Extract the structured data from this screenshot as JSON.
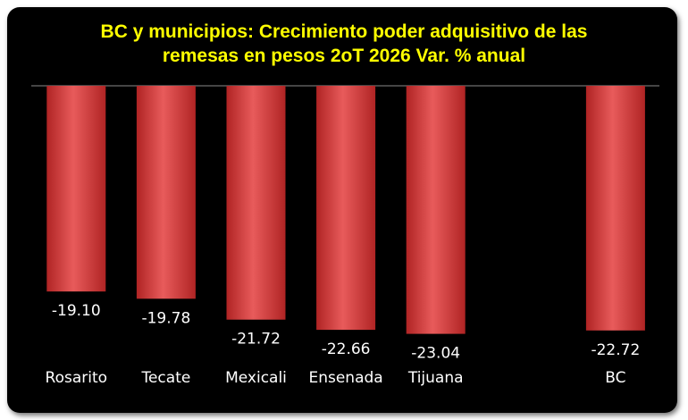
{
  "chart_data": {
    "type": "bar",
    "title_line1": "BC y municipios: Crecimiento poder adquisitivo de las",
    "title_line2": "remesas en pesos 2oT 2026 Var. % anual",
    "categories": [
      "Rosarito",
      "Tecate",
      "Mexicali",
      "Ensenada",
      "Tijuana",
      "",
      "BC"
    ],
    "values": [
      -19.1,
      -19.78,
      -21.72,
      -22.66,
      -23.04,
      null,
      -22.72
    ],
    "value_labels": [
      "-19.10",
      "-19.78",
      "-21.72",
      "-22.66",
      "-23.04",
      "",
      "-22.72"
    ],
    "ylim": [
      -30,
      0
    ],
    "grid": false,
    "legend": "none"
  },
  "colors": {
    "background": "#000000",
    "title": "#ffff00",
    "bar_light": "#e85b5b",
    "bar_dark": "#b02424",
    "text": "#ffffff",
    "axis": "#8a8a8a"
  }
}
